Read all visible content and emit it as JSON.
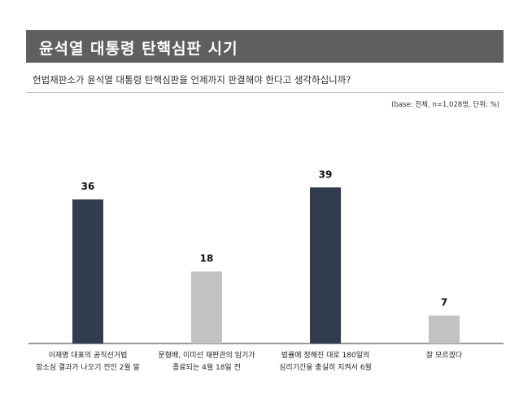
{
  "header": {
    "title": "윤석열 대통령 탄핵심판 시기",
    "question": "헌법재판소가 윤석열 대통령 탄핵심판을 언제까지 판결해야 한다고 생각하십니까?",
    "base_note": "(base: 전체, n=1,028명, 단위: %)"
  },
  "colors": {
    "title_bg": "#5f5f5f",
    "dark_bar": "#323c4f",
    "light_bar": "#c2c2c2",
    "axis": "#333333"
  },
  "chart_data": {
    "type": "bar",
    "title": "윤석열 대통령 탄핵심판 시기",
    "categories": [
      "이재명 대표의 공직선거법\n항소심 결과가 나오기 전인 2월 말",
      "문형배, 이미선 재판관의 임기가\n종료되는 4월 18일 전",
      "법률에 정해진 대로 180일의\n심리기간을 충실히 지켜서 6월",
      "잘 모르겠다"
    ],
    "values": [
      36,
      18,
      39,
      7
    ],
    "bar_colors": [
      "#323c4f",
      "#c2c2c2",
      "#323c4f",
      "#c2c2c2"
    ],
    "unit": "%",
    "ylim": [
      0,
      50
    ],
    "grid": false,
    "legend": "none",
    "xlabel": "",
    "ylabel": ""
  }
}
